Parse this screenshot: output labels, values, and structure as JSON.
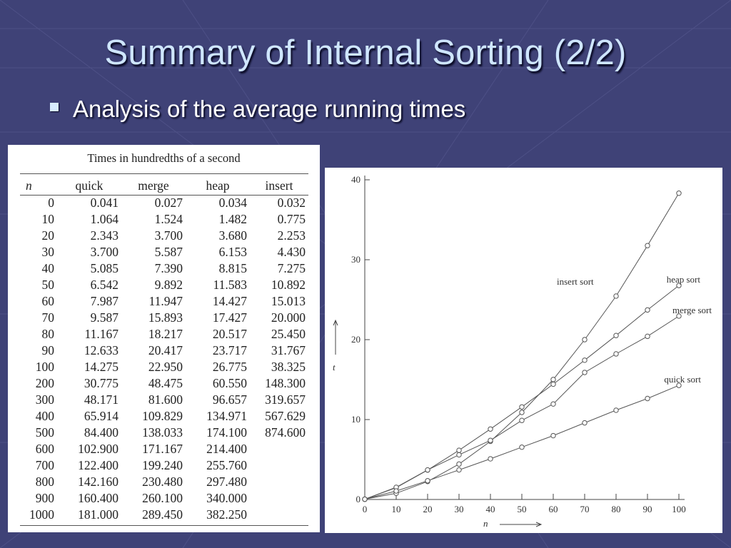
{
  "slide": {
    "title": "Summary of Internal Sorting (2/2)",
    "bullet": "Analysis of the average running times"
  },
  "table": {
    "caption": "Times in hundredths of a second",
    "headers": [
      "n",
      "quick",
      "merge",
      "heap",
      "insert"
    ],
    "rows": [
      [
        "0",
        "0.041",
        "0.027",
        "0.034",
        "0.032"
      ],
      [
        "10",
        "1.064",
        "1.524",
        "1.482",
        "0.775"
      ],
      [
        "20",
        "2.343",
        "3.700",
        "3.680",
        "2.253"
      ],
      [
        "30",
        "3.700",
        "5.587",
        "6.153",
        "4.430"
      ],
      [
        "40",
        "5.085",
        "7.390",
        "8.815",
        "7.275"
      ],
      [
        "50",
        "6.542",
        "9.892",
        "11.583",
        "10.892"
      ],
      [
        "60",
        "7.987",
        "11.947",
        "14.427",
        "15.013"
      ],
      [
        "70",
        "9.587",
        "15.893",
        "17.427",
        "20.000"
      ],
      [
        "80",
        "11.167",
        "18.217",
        "20.517",
        "25.450"
      ],
      [
        "90",
        "12.633",
        "20.417",
        "23.717",
        "31.767"
      ],
      [
        "100",
        "14.275",
        "22.950",
        "26.775",
        "38.325"
      ],
      [
        "200",
        "30.775",
        "48.475",
        "60.550",
        "148.300"
      ],
      [
        "300",
        "48.171",
        "81.600",
        "96.657",
        "319.657"
      ],
      [
        "400",
        "65.914",
        "109.829",
        "134.971",
        "567.629"
      ],
      [
        "500",
        "84.400",
        "138.033",
        "174.100",
        "874.600"
      ],
      [
        "600",
        "102.900",
        "171.167",
        "214.400",
        ""
      ],
      [
        "700",
        "122.400",
        "199.240",
        "255.760",
        ""
      ],
      [
        "800",
        "142.160",
        "230.480",
        "297.480",
        ""
      ],
      [
        "900",
        "160.400",
        "260.100",
        "340.000",
        ""
      ],
      [
        "1000",
        "181.000",
        "289.450",
        "382.250",
        ""
      ]
    ]
  },
  "colors": {
    "background": "#3f4277",
    "title": "#cfe6ff",
    "bullet": "#ffffff"
  },
  "chart_data": {
    "type": "line",
    "title": "",
    "xlabel": "n",
    "ylabel": "t",
    "xlim": [
      0,
      100
    ],
    "ylim": [
      0,
      40
    ],
    "x_ticks": [
      0,
      10,
      20,
      30,
      40,
      50,
      60,
      70,
      80,
      90,
      100
    ],
    "y_ticks": [
      0,
      10,
      20,
      30,
      40
    ],
    "grid": false,
    "x": [
      0,
      10,
      20,
      30,
      40,
      50,
      60,
      70,
      80,
      90,
      100
    ],
    "series": [
      {
        "name": "insert sort",
        "values": [
          0.032,
          0.775,
          2.253,
          4.43,
          7.275,
          10.892,
          15.013,
          20.0,
          25.45,
          31.767,
          38.325
        ]
      },
      {
        "name": "heap sort",
        "values": [
          0.034,
          1.482,
          3.68,
          6.153,
          8.815,
          11.583,
          14.427,
          17.427,
          20.517,
          23.717,
          26.775
        ]
      },
      {
        "name": "merge sort",
        "values": [
          0.027,
          1.524,
          3.7,
          5.587,
          7.39,
          9.892,
          11.947,
          15.893,
          18.217,
          20.417,
          22.95
        ]
      },
      {
        "name": "quick sort",
        "values": [
          0.041,
          1.064,
          2.343,
          3.7,
          5.085,
          6.542,
          7.987,
          9.587,
          11.167,
          12.633,
          14.275
        ]
      }
    ]
  }
}
